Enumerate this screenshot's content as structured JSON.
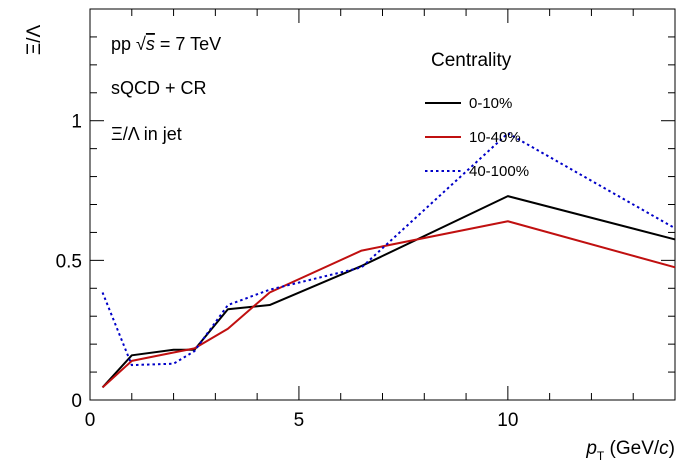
{
  "chart_data": {
    "type": "line",
    "title": "",
    "xlabel_var": "p",
    "xlabel_sub": "T",
    "xlabel_unit_pre": " (GeV/",
    "xlabel_unit_var": "c",
    "xlabel_unit_post": ")",
    "ylabel": "Ξ/Λ",
    "xlim": [
      0,
      14
    ],
    "ylim": [
      0,
      1.4
    ],
    "grid": false,
    "x_ticks": [
      0,
      5,
      10
    ],
    "x_tick_labels": [
      "0",
      "5",
      "10"
    ],
    "y_ticks": [
      0,
      0.5,
      1
    ],
    "y_tick_labels": [
      "0",
      "0.5",
      "1"
    ],
    "annotations": [
      "pp √s = 7 TeV",
      "sQCD + CR",
      "Ξ/Λ in jet"
    ],
    "annotation_parts": {
      "line1_pre": "pp ",
      "line1_sqrt": "√",
      "line1_var": "s",
      "line1_post": " = 7 TeV",
      "line2": "sQCD + CR",
      "line3": "Ξ/Λ in jet"
    },
    "legend_title": "Centrality",
    "legend_position": "top-right",
    "series": [
      {
        "name": "0-10%",
        "color": "#000000",
        "dash": "solid",
        "x": [
          0.3,
          1.0,
          2.0,
          2.5,
          3.3,
          4.3,
          6.5,
          10.0,
          14.0
        ],
        "y": [
          0.045,
          0.16,
          0.18,
          0.18,
          0.325,
          0.34,
          0.48,
          0.73,
          0.575
        ]
      },
      {
        "name": "10-40%",
        "color": "#c01010",
        "dash": "solid",
        "x": [
          0.3,
          1.0,
          2.0,
          2.5,
          3.3,
          4.3,
          6.5,
          10.0,
          14.0
        ],
        "y": [
          0.045,
          0.14,
          0.17,
          0.185,
          0.255,
          0.385,
          0.535,
          0.64,
          0.475
        ]
      },
      {
        "name": "40-100%",
        "color": "#0000c8",
        "dash": "dotted",
        "x": [
          0.3,
          1.0,
          2.0,
          2.5,
          3.3,
          4.3,
          6.5,
          10.0,
          14.0
        ],
        "y": [
          0.385,
          0.125,
          0.13,
          0.175,
          0.34,
          0.395,
          0.475,
          0.955,
          0.615
        ]
      }
    ]
  }
}
